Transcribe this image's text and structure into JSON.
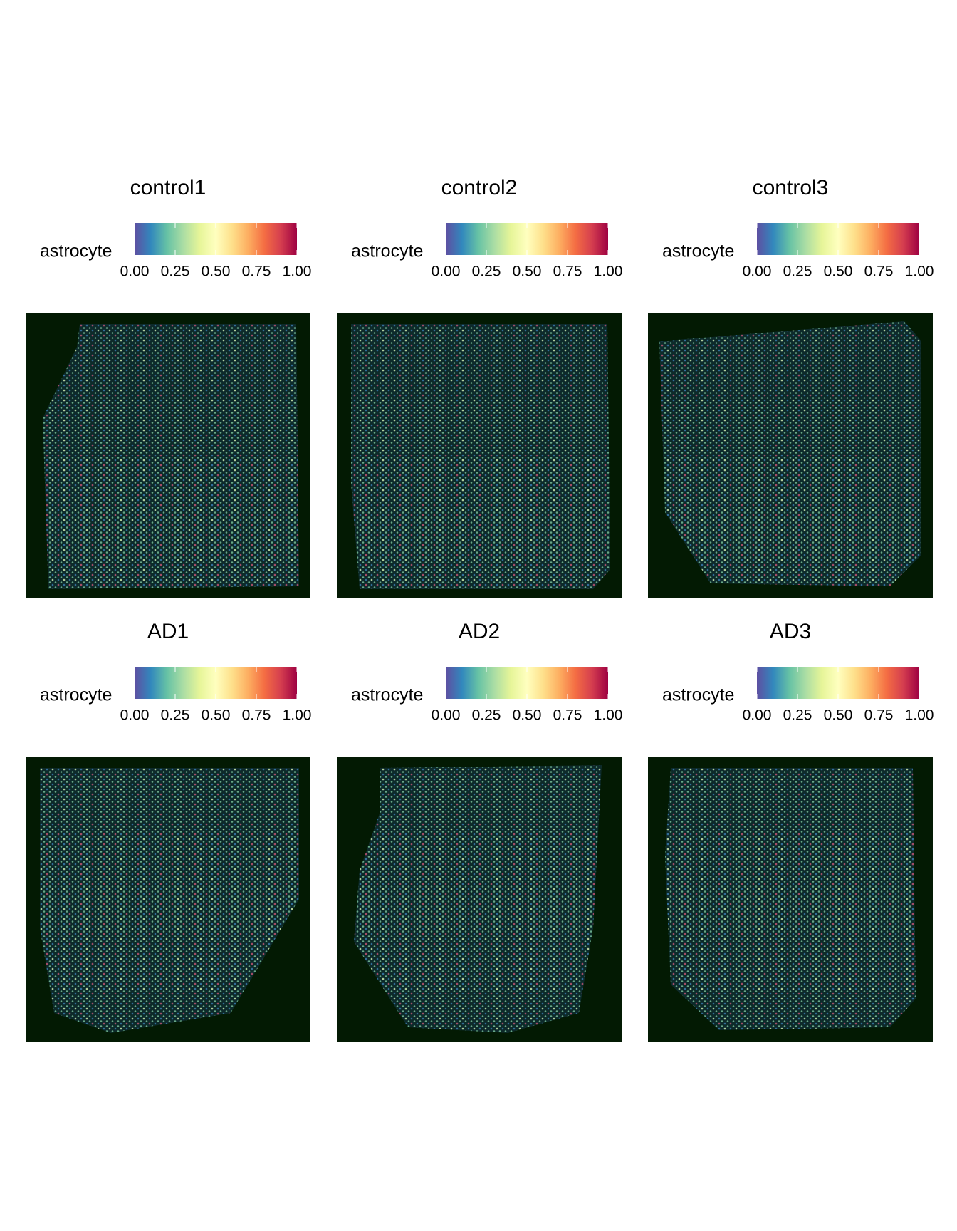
{
  "chart_data": [
    {
      "type": "spatial",
      "title": "control1",
      "legend_title": "astrocyte",
      "colors": [
        "#5e4fa2",
        "#3288bd",
        "#66c2a5",
        "#abdda4",
        "#e6f598",
        "#ffffbf",
        "#fee08b",
        "#fdae61",
        "#f46d43",
        "#d53e4f",
        "#9e0142"
      ],
      "clim": [
        0,
        1
      ],
      "cticks": [
        {
          "value": 0,
          "label": "0.00"
        },
        {
          "value": 0.25,
          "label": "0.25"
        },
        {
          "value": 0.5,
          "label": "0.50"
        },
        {
          "value": 0.75,
          "label": "0.75"
        },
        {
          "value": 1,
          "label": "1.00"
        }
      ]
    },
    {
      "type": "spatial",
      "title": "control2",
      "legend_title": "astrocyte",
      "colors": [
        "#5e4fa2",
        "#3288bd",
        "#66c2a5",
        "#abdda4",
        "#e6f598",
        "#ffffbf",
        "#fee08b",
        "#fdae61",
        "#f46d43",
        "#d53e4f",
        "#9e0142"
      ],
      "clim": [
        0,
        1
      ],
      "cticks": [
        {
          "value": 0,
          "label": "0.00"
        },
        {
          "value": 0.25,
          "label": "0.25"
        },
        {
          "value": 0.5,
          "label": "0.50"
        },
        {
          "value": 0.75,
          "label": "0.75"
        },
        {
          "value": 1,
          "label": "1.00"
        }
      ]
    },
    {
      "type": "spatial",
      "title": "control3",
      "legend_title": "astrocyte",
      "colors": [
        "#5e4fa2",
        "#3288bd",
        "#66c2a5",
        "#abdda4",
        "#e6f598",
        "#ffffbf",
        "#fee08b",
        "#fdae61",
        "#f46d43",
        "#d53e4f",
        "#9e0142"
      ],
      "clim": [
        0,
        1
      ],
      "cticks": [
        {
          "value": 0,
          "label": "0.00"
        },
        {
          "value": 0.25,
          "label": "0.25"
        },
        {
          "value": 0.5,
          "label": "0.50"
        },
        {
          "value": 0.75,
          "label": "0.75"
        },
        {
          "value": 1,
          "label": "1.00"
        }
      ]
    },
    {
      "type": "spatial",
      "title": "AD1",
      "legend_title": "astrocyte",
      "colors": [
        "#5e4fa2",
        "#3288bd",
        "#66c2a5",
        "#abdda4",
        "#e6f598",
        "#ffffbf",
        "#fee08b",
        "#fdae61",
        "#f46d43",
        "#d53e4f",
        "#9e0142"
      ],
      "clim": [
        0,
        1
      ],
      "cticks": [
        {
          "value": 0,
          "label": "0.00"
        },
        {
          "value": 0.25,
          "label": "0.25"
        },
        {
          "value": 0.5,
          "label": "0.50"
        },
        {
          "value": 0.75,
          "label": "0.75"
        },
        {
          "value": 1,
          "label": "1.00"
        }
      ]
    },
    {
      "type": "spatial",
      "title": "AD2",
      "legend_title": "astrocyte",
      "colors": [
        "#5e4fa2",
        "#3288bd",
        "#66c2a5",
        "#abdda4",
        "#e6f598",
        "#ffffbf",
        "#fee08b",
        "#fdae61",
        "#f46d43",
        "#d53e4f",
        "#9e0142"
      ],
      "clim": [
        0,
        1
      ],
      "cticks": [
        {
          "value": 0,
          "label": "0.00"
        },
        {
          "value": 0.25,
          "label": "0.25"
        },
        {
          "value": 0.5,
          "label": "0.50"
        },
        {
          "value": 0.75,
          "label": "0.75"
        },
        {
          "value": 1,
          "label": "1.00"
        }
      ]
    },
    {
      "type": "spatial",
      "title": "AD3",
      "legend_title": "astrocyte",
      "colors": [
        "#5e4fa2",
        "#3288bd",
        "#66c2a5",
        "#abdda4",
        "#e6f598",
        "#ffffbf",
        "#fee08b",
        "#fdae61",
        "#f46d43",
        "#d53e4f",
        "#9e0142"
      ],
      "clim": [
        0,
        1
      ],
      "cticks": [
        {
          "value": 0,
          "label": "0.00"
        },
        {
          "value": 0.25,
          "label": "0.25"
        },
        {
          "value": 0.5,
          "label": "0.50"
        },
        {
          "value": 0.75,
          "label": "0.75"
        },
        {
          "value": 1,
          "label": "1.00"
        }
      ]
    }
  ]
}
